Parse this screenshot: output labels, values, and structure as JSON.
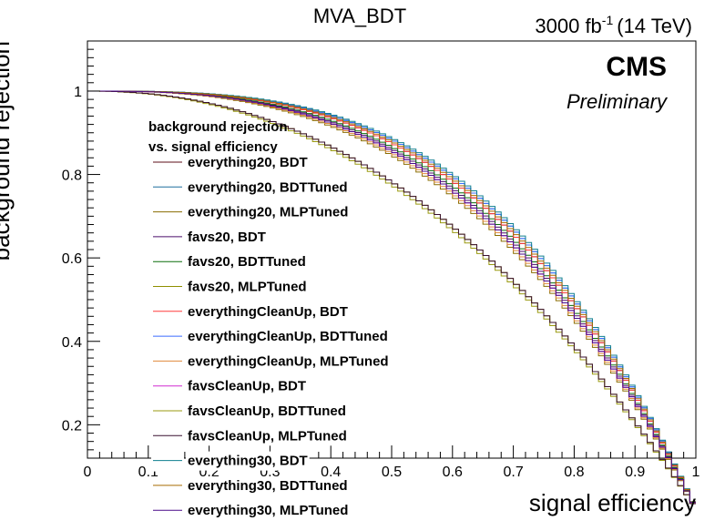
{
  "chart_data": {
    "type": "line",
    "title": "MVA_BDT",
    "lumi_label": "3000 fb",
    "lumi_exponent": "-1",
    "energy_label": "(14 TeV)",
    "experiment": "CMS",
    "status": "Preliminary",
    "xlabel": "signal efficiency",
    "ylabel": "background rejection",
    "xlim": [
      0,
      1
    ],
    "ylim": [
      0.12,
      1.12
    ],
    "x_ticks": [
      "0",
      "0.1",
      "0.2",
      "0.3",
      "0.4",
      "0.5",
      "0.6",
      "0.7",
      "0.8",
      "0.9",
      "1"
    ],
    "y_ticks": [
      "0.2",
      "0.4",
      "0.6",
      "0.8",
      "1"
    ],
    "legend": {
      "title_line1": "background rejection",
      "title_line2": "vs. signal efficiency",
      "placement": "left"
    },
    "series": [
      {
        "name": "everything20, BDT",
        "color": "#5c0f1a",
        "exponent": 3.0
      },
      {
        "name": "everything20, BDTTuned",
        "color": "#1f6f9e",
        "exponent": 3.1
      },
      {
        "name": "everything20, MLPTuned",
        "color": "#8a6d00",
        "exponent": 2.7
      },
      {
        "name": "favs20, BDT",
        "color": "#4b0f6b",
        "exponent": 2.85
      },
      {
        "name": "favs20, BDTTuned",
        "color": "#0b6e0b",
        "exponent": 2.9
      },
      {
        "name": "favs20, MLPTuned",
        "color": "#8f8f00",
        "exponent": 2.2
      },
      {
        "name": "everythingCleanUp, BDT",
        "color": "#ff3b3b",
        "exponent": 3.0
      },
      {
        "name": "everythingCleanUp, BDTTuned",
        "color": "#3b6bff",
        "exponent": 3.1
      },
      {
        "name": "everythingCleanUp, MLPTuned",
        "color": "#e08a3c",
        "exponent": 2.75
      },
      {
        "name": "favsCleanUp, BDT",
        "color": "#d02bd0",
        "exponent": 2.8
      },
      {
        "name": "favsCleanUp, BDTTuned",
        "color": "#9a9a10",
        "exponent": 2.15
      },
      {
        "name": "favsCleanUp, MLPTuned",
        "color": "#3a1030",
        "exponent": 2.2
      },
      {
        "name": "everything30, BDT",
        "color": "#0f7f8f",
        "exponent": 3.15
      },
      {
        "name": "everything30, BDTTuned",
        "color": "#a86a00",
        "exponent": 3.05
      },
      {
        "name": "everything30, MLPTuned",
        "color": "#4a0a8a",
        "exponent": 2.8
      }
    ]
  }
}
